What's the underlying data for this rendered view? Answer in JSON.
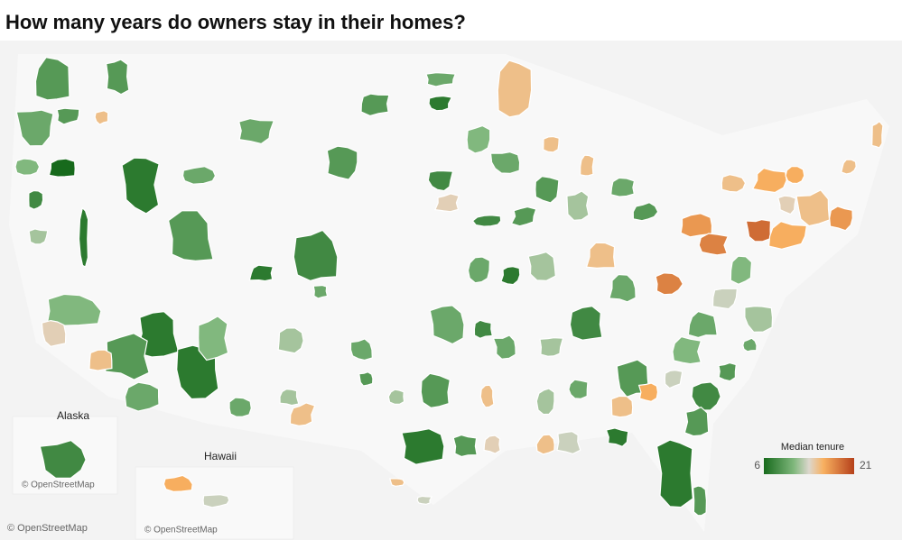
{
  "header": {
    "title": "How many years do owners stay in their homes?"
  },
  "regions": {
    "values": [
      9,
      9,
      10,
      9,
      15,
      6,
      11,
      8,
      12,
      7,
      7,
      9,
      10,
      10,
      9,
      7,
      10,
      15,
      9,
      8,
      7,
      10,
      11,
      7,
      9,
      7,
      11,
      14,
      15,
      10,
      10,
      12,
      10,
      15,
      9,
      12,
      12,
      9,
      7,
      9,
      14,
      15,
      10,
      8,
      8,
      14,
      8,
      10,
      7,
      12,
      9,
      11,
      10,
      15,
      9,
      12,
      15,
      10,
      9,
      15,
      10,
      8,
      12,
      10,
      12,
      10,
      9,
      15,
      16,
      13,
      15,
      7,
      7,
      9,
      11,
      8,
      13,
      18,
      10,
      13,
      17,
      18,
      19,
      16,
      15,
      17,
      16,
      11,
      12,
      9,
      10,
      16,
      15,
      15,
      8,
      16,
      13,
      15,
      13,
      9,
      15,
      14
    ]
  },
  "legend": {
    "title": "Median tenure",
    "min": 6,
    "max": 21,
    "colors": [
      "#176a1c",
      "#dcd7cd",
      "#b5401a"
    ]
  },
  "insets": {
    "alaska": "Alaska",
    "hawaii": "Hawaii"
  },
  "attribution": [
    "© OpenStreetMap",
    "© OpenStreetMap",
    "© OpenStreetMap"
  ]
}
